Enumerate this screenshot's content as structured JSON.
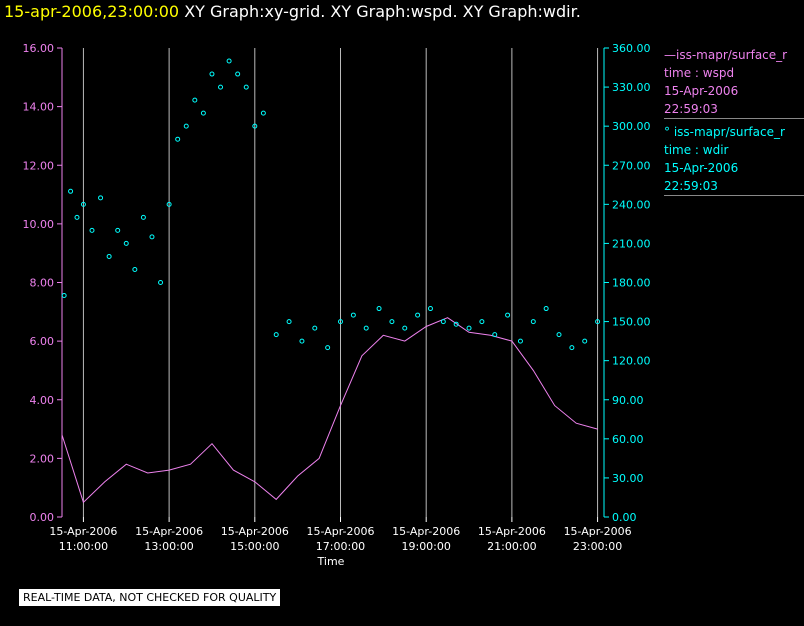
{
  "header": {
    "timestamp": "15-apr-2006,23:00:00",
    "graphs": "XY Graph:xy-grid.  XY Graph:wspd.  XY Graph:wdir."
  },
  "legend": {
    "wspd": {
      "name": "iss-mapr/surface_r",
      "var": "time : wspd",
      "date": "15-Apr-2006",
      "time": "22:59:03"
    },
    "wdir": {
      "name": "iss-mapr/surface_r",
      "var": "time : wdir",
      "date": "15-Apr-2006",
      "time": "22:59:03"
    }
  },
  "notice": "REAL-TIME DATA, NOT CHECKED FOR QUALITY",
  "chart_data": {
    "type": "line+scatter",
    "xlabel": "Time",
    "x_range_hours": [
      10.5,
      23.15
    ],
    "x_ticks": [
      {
        "h": 11,
        "date": "15-Apr-2006",
        "time": "11:00:00"
      },
      {
        "h": 13,
        "date": "15-Apr-2006",
        "time": "13:00:00"
      },
      {
        "h": 15,
        "date": "15-Apr-2006",
        "time": "15:00:00"
      },
      {
        "h": 17,
        "date": "15-Apr-2006",
        "time": "17:00:00"
      },
      {
        "h": 19,
        "date": "15-Apr-2006",
        "time": "19:00:00"
      },
      {
        "h": 21,
        "date": "15-Apr-2006",
        "time": "21:00:00"
      },
      {
        "h": 23,
        "date": "15-Apr-2006",
        "time": "23:00:00"
      }
    ],
    "left_axis": {
      "range": [
        0,
        16
      ],
      "ticks": [
        "0.00",
        "2.00",
        "4.00",
        "6.00",
        "8.00",
        "10.00",
        "12.00",
        "14.00",
        "16.00"
      ],
      "color": "#ee82ee"
    },
    "right_axis": {
      "range": [
        0,
        360
      ],
      "ticks": [
        "0.00",
        "30.00",
        "60.00",
        "90.00",
        "120.00",
        "150.00",
        "180.00",
        "210.00",
        "240.00",
        "270.00",
        "300.00",
        "330.00",
        "360.00"
      ],
      "color": "#00ffff"
    },
    "series": [
      {
        "name": "wspd",
        "style": "line",
        "color": "#ee82ee",
        "axis": "left",
        "x": [
          10.5,
          11.0,
          11.5,
          12.0,
          12.5,
          13.0,
          13.5,
          14.0,
          14.5,
          15.0,
          15.5,
          16.0,
          16.5,
          17.0,
          17.5,
          18.0,
          18.5,
          19.0,
          19.5,
          20.0,
          20.5,
          21.0,
          21.5,
          22.0,
          22.5,
          23.0
        ],
        "y": [
          2.8,
          0.5,
          1.2,
          1.8,
          1.5,
          1.6,
          1.8,
          2.5,
          1.6,
          1.2,
          0.6,
          1.4,
          2.0,
          3.8,
          5.5,
          6.2,
          6.0,
          6.5,
          6.8,
          6.3,
          6.2,
          6.0,
          5.0,
          3.8,
          3.2,
          3.0
        ]
      },
      {
        "name": "wdir",
        "style": "scatter",
        "color": "#00ffff",
        "axis": "right",
        "x": [
          10.55,
          10.7,
          10.85,
          11.0,
          11.2,
          11.4,
          11.6,
          11.8,
          12.0,
          12.2,
          12.4,
          12.6,
          12.8,
          13.0,
          13.2,
          13.4,
          13.6,
          13.8,
          14.0,
          14.2,
          14.4,
          14.6,
          14.8,
          15.0,
          15.2,
          15.5,
          15.8,
          16.1,
          16.4,
          16.7,
          17.0,
          17.3,
          17.6,
          17.9,
          18.2,
          18.5,
          18.8,
          19.1,
          19.4,
          19.7,
          20.0,
          20.3,
          20.6,
          20.9,
          21.2,
          21.5,
          21.8,
          22.1,
          22.4,
          22.7,
          23.0
        ],
        "y": [
          170,
          250,
          230,
          240,
          220,
          245,
          200,
          220,
          210,
          190,
          230,
          215,
          180,
          240,
          290,
          300,
          320,
          310,
          340,
          330,
          350,
          340,
          330,
          300,
          310,
          140,
          150,
          135,
          145,
          130,
          150,
          155,
          145,
          160,
          150,
          145,
          155,
          160,
          150,
          148,
          145,
          150,
          140,
          155,
          135,
          150,
          160,
          140,
          130,
          135,
          150
        ]
      }
    ]
  }
}
